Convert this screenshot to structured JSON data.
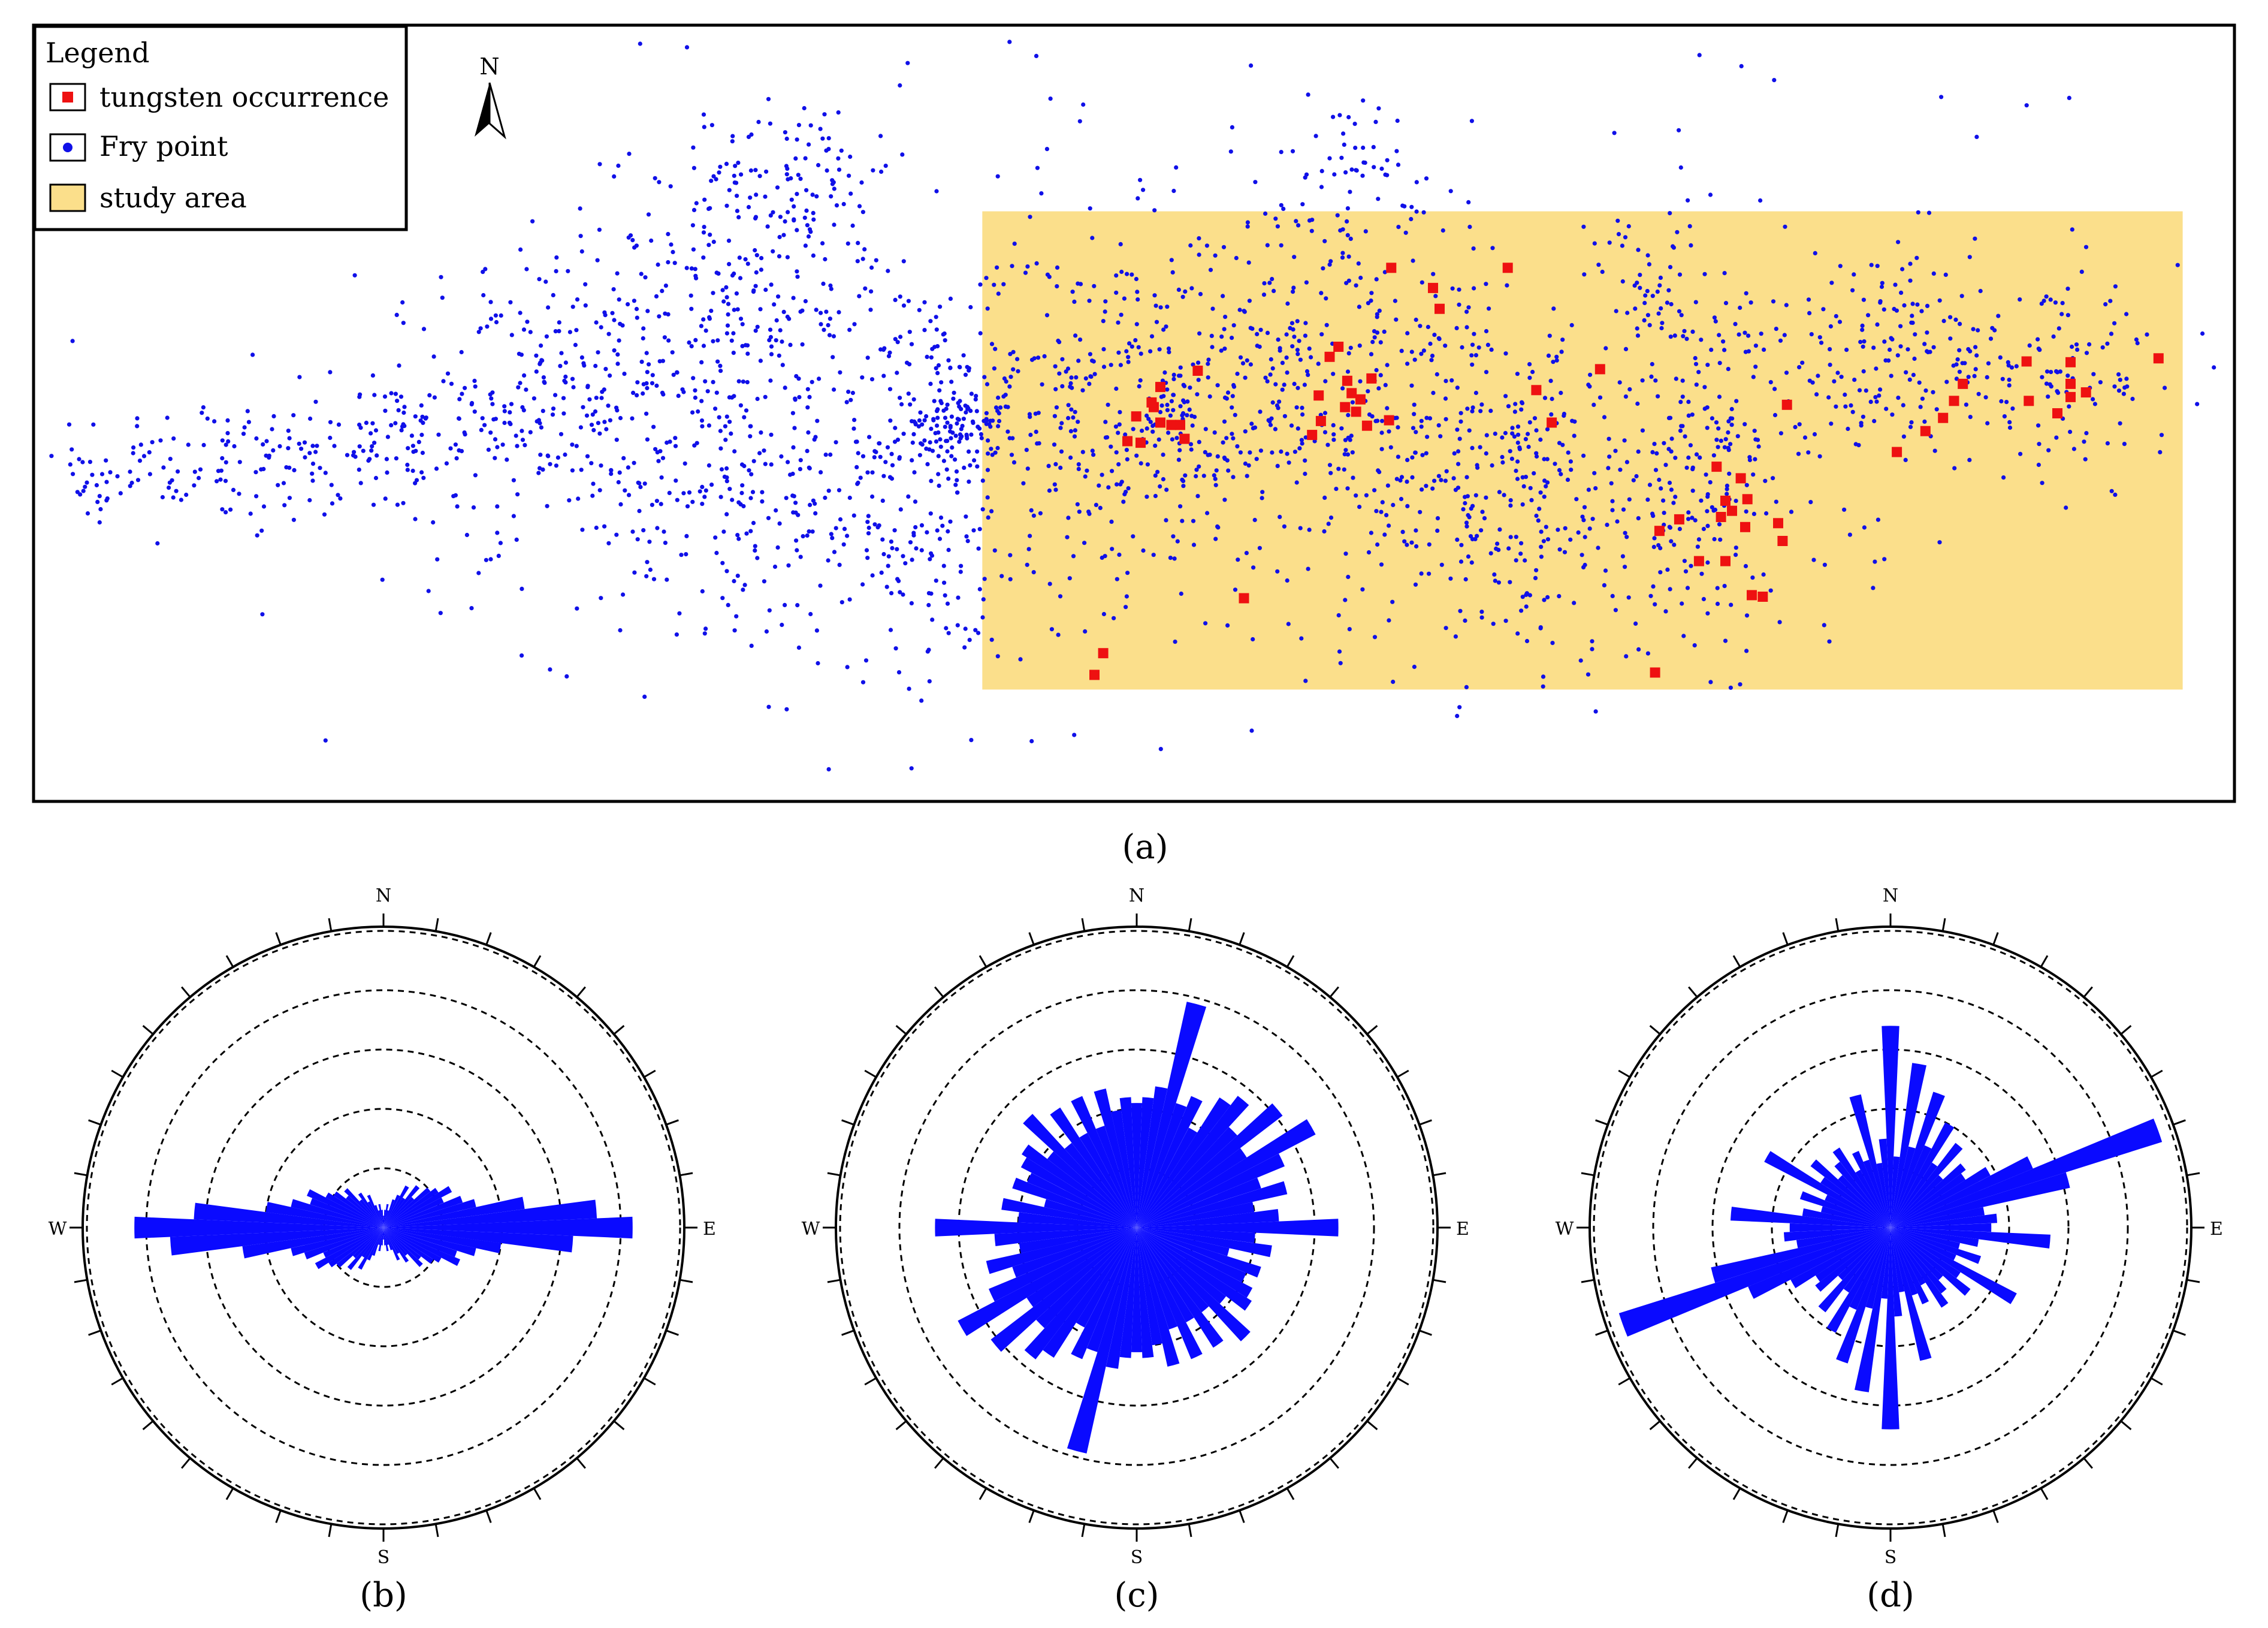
{
  "panels": {
    "a": "(a)",
    "b": "(b)",
    "c": "(c)",
    "d": "(d)"
  },
  "legend": {
    "title": "Legend",
    "items": [
      "tungsten occurrence",
      "Fry point",
      "study area"
    ]
  },
  "north_arrow": "N",
  "colors": {
    "tungsten": "#ee1111",
    "fry": "#1010e8",
    "study_area": "#fbdf8b",
    "rose": "#0a0aff",
    "frame": "#000000"
  },
  "chart_data": [
    {
      "type": "scatter",
      "panel": "(a)",
      "description_units": "map coordinates, x 0-100 (W to E), y 0-100 (S to N)",
      "xlim": [
        0,
        100
      ],
      "ylim": [
        0,
        100
      ],
      "series": [
        {
          "name": "tungsten occurrence",
          "marker": "square",
          "x": [
            48.6,
            48.2,
            50.1,
            50.9,
            51.7,
            51.2,
            51.2,
            52.1,
            50.8,
            50.3,
            49.7,
            52.3,
            58.4,
            58.9,
            59.3,
            59.7,
            60.1,
            60.6,
            59.6,
            59.9,
            58.1,
            58.5,
            61.6,
            60.3,
            60.8,
            63.9,
            63.6,
            67.0,
            71.2,
            69.0,
            68.3,
            61.7,
            52.9,
            55.0,
            76.9,
            77.2,
            77.9,
            76.9,
            76.7,
            76.5,
            74.8,
            73.9,
            77.6,
            79.5,
            79.3,
            78.6,
            75.7,
            78.1,
            77.8,
            73.7,
            79.7,
            84.7,
            86.0,
            87.3,
            87.7,
            86.8,
            90.6,
            92.6,
            90.7,
            92.6,
            92.6,
            93.3,
            92.0,
            96.6
          ],
          "y": [
            19.0,
            16.2,
            49.6,
            50.8,
            48.5,
            53.4,
            48.8,
            48.5,
            51.4,
            46.2,
            46.4,
            46.7,
            52.3,
            57.3,
            58.6,
            54.2,
            50.2,
            48.4,
            50.8,
            52.6,
            47.2,
            49.0,
            49.1,
            51.8,
            54.5,
            63.5,
            66.2,
            68.8,
            55.7,
            48.8,
            53.0,
            68.8,
            55.5,
            26.1,
            30.9,
            37.4,
            38.9,
            38.7,
            36.6,
            43.1,
            36.3,
            34.8,
            41.6,
            33.5,
            35.8,
            26.3,
            30.9,
            26.5,
            35.3,
            16.5,
            51.1,
            45.0,
            47.7,
            51.6,
            53.8,
            49.4,
            56.7,
            56.6,
            51.6,
            53.8,
            52.1,
            52.7,
            50.0,
            57.1
          ]
        },
        {
          "name": "Fry point",
          "marker": "dot",
          "count_approx": 2600,
          "clusters": [
            {
              "x": 2.5,
              "y": 41,
              "sx": 1.5,
              "sy": 3,
              "n": 30
            },
            {
              "x": 8,
              "y": 44,
              "sx": 2.5,
              "sy": 4,
              "n": 70
            },
            {
              "x": 15,
              "y": 45,
              "sx": 3,
              "sy": 5,
              "n": 110
            },
            {
              "x": 23,
              "y": 52,
              "sx": 3,
              "sy": 9,
              "n": 230
            },
            {
              "x": 32,
              "y": 64,
              "sx": 3,
              "sy": 11,
              "n": 270
            },
            {
              "x": 30.5,
              "y": 38,
              "sx": 4,
              "sy": 10,
              "n": 170
            },
            {
              "x": 35,
              "y": 82,
              "sx": 2,
              "sy": 5,
              "n": 60
            },
            {
              "x": 39.5,
              "y": 43,
              "sx": 3,
              "sy": 13,
              "n": 270
            },
            {
              "x": 42,
              "y": 49,
              "sx": 1.1,
              "sy": 2.2,
              "n": 90
            },
            {
              "x": 49.5,
              "y": 50,
              "sx": 4,
              "sy": 12,
              "n": 380
            },
            {
              "x": 59,
              "y": 54,
              "sx": 4,
              "sy": 12,
              "n": 320
            },
            {
              "x": 60.5,
              "y": 82,
              "sx": 2,
              "sy": 5,
              "n": 60
            },
            {
              "x": 67,
              "y": 40,
              "sx": 3.5,
              "sy": 11,
              "n": 270
            },
            {
              "x": 73.5,
              "y": 65,
              "sx": 2,
              "sy": 6,
              "n": 60
            },
            {
              "x": 76,
              "y": 42,
              "sx": 3,
              "sy": 11,
              "n": 230
            },
            {
              "x": 85,
              "y": 58,
              "sx": 4,
              "sy": 7,
              "n": 160
            },
            {
              "x": 92,
              "y": 55,
              "sx": 3,
              "sy": 5,
              "n": 100
            },
            {
              "x": 50,
              "y": 50,
              "sx": 28,
              "sy": 25,
              "n": 220
            }
          ]
        },
        {
          "name": "study area",
          "marker": "rect",
          "x_range": [
            43.1,
            97.7
          ],
          "y_range": [
            14.3,
            76.1
          ]
        }
      ]
    },
    {
      "type": "rose",
      "panel": "(b)",
      "compass_labels": [
        "N",
        "E",
        "S",
        "W"
      ],
      "bin_width_deg": 5,
      "max_radius": 5,
      "ring_values": [
        1,
        2,
        3,
        4,
        5
      ],
      "bins_deg": [
        0,
        5,
        10,
        15,
        20,
        25,
        30,
        35,
        40,
        45,
        50,
        55,
        60,
        65,
        70,
        75,
        80,
        85,
        90,
        95,
        100,
        105,
        110,
        115,
        120,
        125,
        130,
        135,
        140,
        145,
        150,
        155,
        160,
        165,
        170,
        175
      ],
      "values": [
        0.2,
        0.3,
        0.4,
        0.3,
        0.5,
        0.6,
        0.8,
        0.6,
        0.9,
        0.7,
        1.0,
        1.1,
        1.3,
        1.1,
        1.4,
        1.6,
        2.4,
        3.6,
        4.2,
        3.2,
        2.0,
        1.6,
        1.3,
        1.4,
        1.1,
        1.0,
        0.8,
        0.9,
        0.6,
        0.7,
        0.5,
        0.6,
        0.4,
        0.3,
        0.4,
        0.3
      ]
    },
    {
      "type": "rose",
      "panel": "(c)",
      "compass_labels": [
        "N",
        "E",
        "S",
        "W"
      ],
      "bin_width_deg": 5,
      "max_radius": 5,
      "ring_values": [
        1,
        2,
        3,
        4,
        5
      ],
      "bins_deg": [
        0,
        5,
        10,
        15,
        20,
        25,
        30,
        35,
        40,
        45,
        50,
        55,
        60,
        65,
        70,
        75,
        80,
        85,
        90,
        95,
        100,
        105,
        110,
        115,
        120,
        125,
        130,
        135,
        140,
        145,
        150,
        155,
        160,
        165,
        170,
        175
      ],
      "values": [
        2.1,
        2.2,
        2.4,
        3.9,
        2.2,
        2.4,
        1.9,
        2.6,
        2.8,
        2.3,
        3.1,
        2.2,
        3.4,
        2.7,
        2.2,
        2.6,
        2.0,
        2.4,
        3.4,
        2.0,
        2.3,
        1.6,
        2.2,
        2.0,
        2.2,
        2.3,
        1.9,
        2.6,
        1.8,
        2.4,
        1.8,
        2.4,
        1.8,
        2.4,
        2.0,
        2.2
      ]
    },
    {
      "type": "rose",
      "panel": "(d)",
      "compass_labels": [
        "N",
        "E",
        "S",
        "W"
      ],
      "bin_width_deg": 5,
      "max_radius": 5,
      "ring_values": [
        1,
        2,
        3,
        4,
        5
      ],
      "bins_deg": [
        0,
        5,
        10,
        15,
        20,
        25,
        30,
        35,
        40,
        45,
        50,
        55,
        60,
        65,
        70,
        75,
        80,
        85,
        90,
        95,
        100,
        105,
        110,
        115,
        120,
        125,
        130,
        135,
        140,
        145,
        150,
        155,
        160,
        165,
        170,
        175
      ],
      "values": [
        3.4,
        1.2,
        2.8,
        1.4,
        2.4,
        1.5,
        2.0,
        1.3,
        1.8,
        1.2,
        1.6,
        1.5,
        1.9,
        2.6,
        4.8,
        3.1,
        1.6,
        1.8,
        1.7,
        2.7,
        1.5,
        1.2,
        1.6,
        1.2,
        2.4,
        1.4,
        1.7,
        1.2,
        1.4,
        1.6,
        1.1,
        1.4,
        1.2,
        2.3,
        1.1,
        1.5
      ]
    }
  ]
}
